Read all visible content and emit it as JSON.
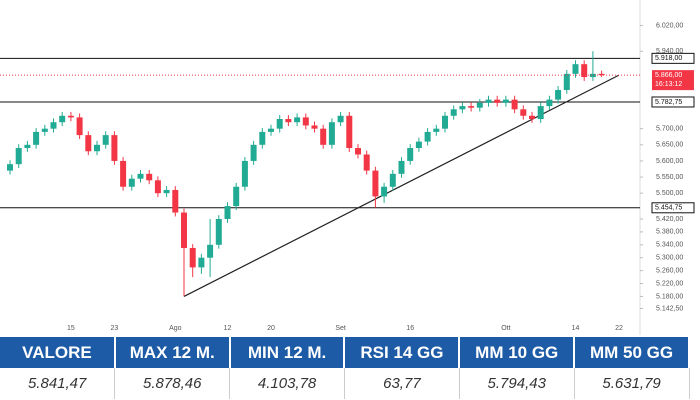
{
  "chart_data": {
    "type": "candlestick",
    "categories": [
      null,
      null,
      null,
      null,
      null,
      null,
      null,
      "15",
      null,
      null,
      null,
      null,
      "23",
      null,
      null,
      null,
      null,
      null,
      null,
      "Ago",
      null,
      null,
      null,
      null,
      null,
      "12",
      null,
      null,
      null,
      null,
      "20",
      null,
      null,
      null,
      null,
      null,
      null,
      null,
      "Set",
      null,
      null,
      null,
      null,
      null,
      null,
      null,
      "16",
      null,
      null,
      null,
      null,
      null,
      null,
      null,
      null,
      null,
      null,
      "Ott",
      null,
      null,
      null,
      null,
      null,
      null,
      null,
      "14",
      null,
      null,
      null,
      null,
      "22"
    ],
    "open": [
      5570,
      5590,
      5640,
      5650,
      5690,
      5700,
      5720,
      5740,
      5735,
      5680,
      5630,
      5650,
      5680,
      5600,
      5520,
      5545,
      5560,
      5540,
      5500,
      5510,
      5440,
      5330,
      5270,
      5300,
      5340,
      5420,
      5460,
      5520,
      5600,
      5650,
      5690,
      5700,
      5730,
      5720,
      5735,
      5710,
      5700,
      5650,
      5720,
      5740,
      5640,
      5620,
      5570,
      5490,
      5520,
      5560,
      5600,
      5640,
      5660,
      5690,
      5700,
      5740,
      5760,
      5770,
      5765,
      5780,
      5790,
      5780,
      5790,
      5760,
      5740,
      5730,
      5770,
      5790,
      5820,
      5870,
      5900,
      5860,
      5870,
      null,
      null
    ],
    "high": [
      5602,
      5652,
      5662,
      5702,
      5712,
      5732,
      5752,
      5752,
      5747,
      5692,
      5662,
      5692,
      5692,
      5612,
      5557,
      5572,
      5572,
      5552,
      5522,
      5522,
      5452,
      5342,
      5312,
      5420,
      5432,
      5472,
      5532,
      5612,
      5662,
      5702,
      5712,
      5742,
      5742,
      5747,
      5747,
      5722,
      5712,
      5732,
      5752,
      5752,
      5652,
      5632,
      5582,
      5532,
      5572,
      5612,
      5652,
      5672,
      5702,
      5712,
      5752,
      5772,
      5782,
      5782,
      5792,
      5802,
      5802,
      5802,
      5802,
      5772,
      5752,
      5782,
      5802,
      5832,
      5882,
      5912,
      5912,
      5940,
      5880,
      null,
      null
    ],
    "low": [
      5558,
      5578,
      5628,
      5638,
      5678,
      5688,
      5708,
      5723,
      5668,
      5618,
      5618,
      5638,
      5588,
      5508,
      5508,
      5533,
      5528,
      5488,
      5488,
      5428,
      5180,
      5240,
      5250,
      5240,
      5328,
      5408,
      5448,
      5508,
      5588,
      5638,
      5678,
      5688,
      5708,
      5708,
      5698,
      5688,
      5638,
      5638,
      5708,
      5628,
      5608,
      5558,
      5455,
      5470,
      5508,
      5548,
      5588,
      5628,
      5648,
      5678,
      5688,
      5728,
      5748,
      5753,
      5753,
      5768,
      5768,
      5768,
      5748,
      5728,
      5718,
      5718,
      5758,
      5778,
      5808,
      5858,
      5848,
      5848,
      5860,
      null,
      null
    ],
    "close": [
      5590,
      5640,
      5650,
      5690,
      5700,
      5720,
      5740,
      5735,
      5680,
      5630,
      5650,
      5680,
      5600,
      5520,
      5545,
      5560,
      5540,
      5500,
      5510,
      5440,
      5330,
      5270,
      5300,
      5340,
      5420,
      5460,
      5520,
      5600,
      5650,
      5690,
      5700,
      5730,
      5720,
      5735,
      5710,
      5700,
      5650,
      5720,
      5740,
      5640,
      5620,
      5570,
      5490,
      5520,
      5560,
      5600,
      5640,
      5660,
      5690,
      5700,
      5740,
      5760,
      5770,
      5765,
      5780,
      5790,
      5780,
      5790,
      5760,
      5740,
      5730,
      5770,
      5790,
      5820,
      5870,
      5900,
      5860,
      5870,
      5866,
      null,
      null
    ],
    "up_color": "#22ab94",
    "down_color": "#f23645",
    "ylim": [
      5110,
      6040
    ],
    "yticks": [
      {
        "value": 6020,
        "label": "6.020,00"
      },
      {
        "value": 5940,
        "label": "5.940,00"
      },
      {
        "value": 5700,
        "label": "5.700,00"
      },
      {
        "value": 5650,
        "label": "5.650,00"
      },
      {
        "value": 5600,
        "label": "5.600,00"
      },
      {
        "value": 5550,
        "label": "5.550,00"
      },
      {
        "value": 5500,
        "label": "5.500,00"
      },
      {
        "value": 5420,
        "label": "5.420,00"
      },
      {
        "value": 5380,
        "label": "5.380,00"
      },
      {
        "value": 5340,
        "label": "5.340,00"
      },
      {
        "value": 5300,
        "label": "5.300,00"
      },
      {
        "value": 5260,
        "label": "5.260,00"
      },
      {
        "value": 5220,
        "label": "5.220,00"
      },
      {
        "value": 5180,
        "label": "5.180,00"
      },
      {
        "value": 5142.5,
        "label": "5.142,50"
      }
    ],
    "levels": [
      {
        "value": 5918,
        "label": "5.918,00"
      },
      {
        "value": 5782.75,
        "label": "5.782,75"
      },
      {
        "value": 5454.75,
        "label": "5.454,75"
      }
    ],
    "last_price": {
      "value": 5866,
      "label": "5.866,00"
    },
    "countdown": "16:13:12",
    "trendline": {
      "x": [
        20,
        70
      ],
      "values": [
        5180,
        5866
      ]
    }
  },
  "table": {
    "headers": [
      "VALORE",
      "MAX 12 M.",
      "MIN 12 M.",
      "RSI 14 GG",
      "MM 10 GG",
      "MM 50 GG"
    ],
    "rows": [
      [
        "5.841,47",
        "5.878,46",
        "4.103,78",
        "63,77",
        "5.794,43",
        "5.631,79"
      ]
    ]
  }
}
